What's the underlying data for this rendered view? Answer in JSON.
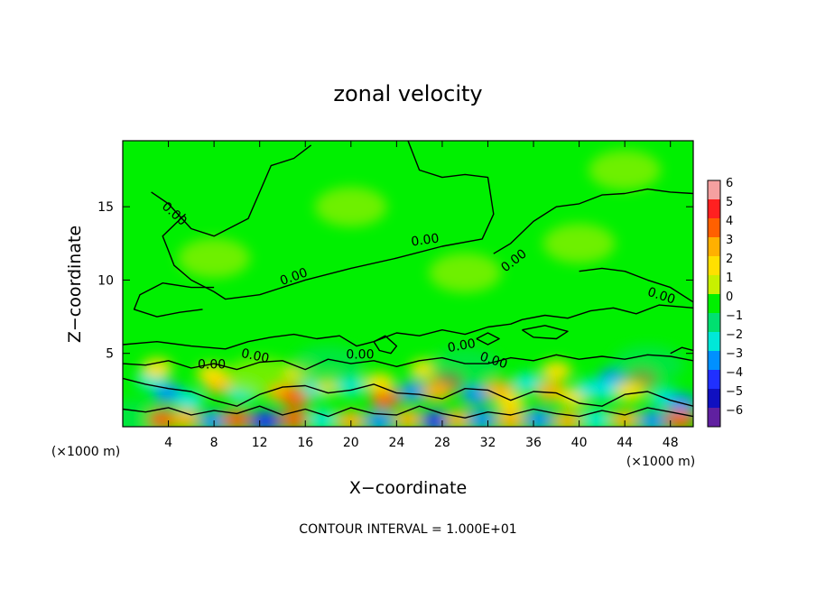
{
  "chart_data": {
    "type": "heatmap",
    "title": "zonal velocity",
    "xlabel": "X−coordinate",
    "ylabel": "Z−coordinate",
    "x_unit_left": "(×1000 m)",
    "x_unit_right": "(×1000 m)",
    "footer": "CONTOUR INTERVAL = 1.000E+01",
    "xlim": [
      0,
      50
    ],
    "ylim": [
      0,
      19.5
    ],
    "x_ticks": [
      4,
      8,
      12,
      16,
      20,
      24,
      28,
      32,
      36,
      40,
      44,
      48
    ],
    "x_tick_labels": [
      "4",
      "8",
      "12",
      "16",
      "20",
      "24",
      "28",
      "32",
      "36",
      "40",
      "44",
      "48"
    ],
    "y_ticks": [
      5,
      10,
      15
    ],
    "y_tick_labels": [
      "5",
      "10",
      "15"
    ],
    "colorbar": {
      "values": [
        6,
        5,
        4,
        3,
        2,
        1,
        0,
        -1,
        -2,
        -3,
        -4,
        -5,
        -6
      ],
      "labels": [
        "6",
        "5",
        "4",
        "3",
        "2",
        "1",
        "0",
        "−1",
        "−2",
        "−3",
        "−4",
        "−5",
        "−6"
      ],
      "colors": [
        "#f5a0a0",
        "#ff2020",
        "#ff6000",
        "#ffb000",
        "#ffe000",
        "#c8f000",
        "#00f000",
        "#00e070",
        "#00e8d8",
        "#0090ff",
        "#2030ff",
        "#1010c0",
        "#6020a0"
      ]
    },
    "background_color": "#00f000",
    "contour_labels": [
      {
        "text": "0.00",
        "x": 4.5,
        "z": 14.5,
        "angle": 42
      },
      {
        "text": "0.00",
        "x": 15.0,
        "z": 10.2,
        "angle": -20
      },
      {
        "text": "0.00",
        "x": 26.5,
        "z": 12.7,
        "angle": -8
      },
      {
        "text": "0.00",
        "x": 34.3,
        "z": 11.3,
        "angle": -38
      },
      {
        "text": "0.00",
        "x": 47.2,
        "z": 8.9,
        "angle": 18
      },
      {
        "text": "0.00",
        "x": 11.6,
        "z": 4.8,
        "angle": 12
      },
      {
        "text": "0.00",
        "x": 7.8,
        "z": 4.2,
        "angle": 0
      },
      {
        "text": "0.00",
        "x": 20.8,
        "z": 4.9,
        "angle": 0
      },
      {
        "text": "0.00",
        "x": 29.7,
        "z": 5.5,
        "angle": -10
      },
      {
        "text": "0.00",
        "x": 32.5,
        "z": 4.5,
        "angle": 18
      }
    ],
    "contours": [
      [
        [
          2.5,
          16.0
        ],
        [
          4.0,
          15.2
        ],
        [
          6.0,
          13.5
        ],
        [
          8.0,
          13.0
        ],
        [
          11.0,
          14.2
        ],
        [
          12.0,
          16.0
        ],
        [
          13.0,
          17.8
        ],
        [
          15.0,
          18.3
        ],
        [
          16.5,
          19.2
        ]
      ],
      [
        [
          25.0,
          19.5
        ],
        [
          26.0,
          17.5
        ],
        [
          28.0,
          17.0
        ],
        [
          30.0,
          17.2
        ],
        [
          32.0,
          17.0
        ],
        [
          32.5,
          14.5
        ],
        [
          31.5,
          12.8
        ],
        [
          28.0,
          12.3
        ],
        [
          24.0,
          11.5
        ],
        [
          20.0,
          10.8
        ],
        [
          16.0,
          10.0
        ],
        [
          12.0,
          9.0
        ],
        [
          9.0,
          8.7
        ],
        [
          8.0,
          9.2
        ],
        [
          6.0,
          10.0
        ],
        [
          4.5,
          11.0
        ],
        [
          4.0,
          12.0
        ],
        [
          3.5,
          13.0
        ],
        [
          5.5,
          14.5
        ]
      ],
      [
        [
          8.0,
          9.5
        ],
        [
          6.0,
          9.5
        ],
        [
          3.5,
          9.8
        ],
        [
          1.5,
          9.0
        ],
        [
          1.0,
          8.0
        ],
        [
          3.0,
          7.5
        ],
        [
          5.0,
          7.8
        ],
        [
          7.0,
          8.0
        ]
      ],
      [
        [
          0.0,
          5.6
        ],
        [
          3.0,
          5.8
        ],
        [
          6.0,
          5.5
        ],
        [
          9.0,
          5.3
        ],
        [
          11.0,
          5.8
        ],
        [
          13.0,
          6.1
        ],
        [
          15.0,
          6.3
        ],
        [
          17.0,
          6.0
        ],
        [
          19.0,
          6.2
        ],
        [
          20.5,
          5.5
        ],
        [
          22.0,
          5.8
        ],
        [
          24.0,
          6.4
        ],
        [
          26.0,
          6.2
        ],
        [
          28.0,
          6.6
        ],
        [
          30.0,
          6.3
        ],
        [
          32.0,
          6.8
        ],
        [
          34.0,
          7.0
        ],
        [
          35.0,
          7.3
        ],
        [
          37.0,
          7.6
        ],
        [
          39.0,
          7.4
        ],
        [
          41.0,
          7.9
        ],
        [
          43.0,
          8.1
        ],
        [
          45.0,
          7.7
        ],
        [
          47.0,
          8.3
        ],
        [
          50.0,
          8.1
        ]
      ],
      [
        [
          32.5,
          11.8
        ],
        [
          34.0,
          12.5
        ],
        [
          36.0,
          14.0
        ],
        [
          38.0,
          15.0
        ],
        [
          40.0,
          15.2
        ],
        [
          42.0,
          15.8
        ],
        [
          44.0,
          15.9
        ],
        [
          46.0,
          16.2
        ],
        [
          48.0,
          16.0
        ],
        [
          50.0,
          15.9
        ]
      ],
      [
        [
          40.0,
          10.6
        ],
        [
          42.0,
          10.8
        ],
        [
          44.0,
          10.6
        ],
        [
          46.0,
          10.0
        ],
        [
          48.0,
          9.5
        ],
        [
          50.0,
          8.5
        ]
      ],
      [
        [
          0.0,
          4.3
        ],
        [
          2.0,
          4.2
        ],
        [
          4.0,
          4.5
        ],
        [
          6.0,
          4.0
        ],
        [
          8.0,
          4.3
        ],
        [
          10.0,
          3.9
        ],
        [
          12.0,
          4.4
        ],
        [
          14.0,
          4.5
        ],
        [
          16.0,
          3.9
        ],
        [
          18.0,
          4.6
        ],
        [
          20.0,
          4.3
        ],
        [
          22.0,
          4.5
        ],
        [
          24.0,
          4.1
        ],
        [
          26.0,
          4.5
        ],
        [
          28.0,
          4.7
        ],
        [
          30.0,
          4.3
        ],
        [
          32.0,
          4.3
        ],
        [
          34.0,
          4.7
        ],
        [
          36.0,
          4.5
        ],
        [
          38.0,
          4.9
        ],
        [
          40.0,
          4.6
        ],
        [
          42.0,
          4.8
        ],
        [
          44.0,
          4.6
        ],
        [
          46.0,
          4.9
        ],
        [
          48.0,
          4.8
        ],
        [
          50.0,
          4.5
        ]
      ],
      [
        [
          0.0,
          3.3
        ],
        [
          2.0,
          2.9
        ],
        [
          4.0,
          2.6
        ],
        [
          6.0,
          2.4
        ],
        [
          8.0,
          1.8
        ],
        [
          10.0,
          1.4
        ],
        [
          12.0,
          2.2
        ],
        [
          14.0,
          2.7
        ],
        [
          16.0,
          2.8
        ],
        [
          18.0,
          2.3
        ],
        [
          20.0,
          2.5
        ],
        [
          22.0,
          2.9
        ],
        [
          24.0,
          2.3
        ],
        [
          26.0,
          2.2
        ],
        [
          28.0,
          1.9
        ],
        [
          30.0,
          2.6
        ],
        [
          32.0,
          2.5
        ],
        [
          34.0,
          1.8
        ],
        [
          36.0,
          2.4
        ],
        [
          38.0,
          2.3
        ],
        [
          40.0,
          1.6
        ],
        [
          42.0,
          1.4
        ],
        [
          44.0,
          2.2
        ],
        [
          46.0,
          2.4
        ],
        [
          48.0,
          1.8
        ],
        [
          50.0,
          1.4
        ]
      ],
      [
        [
          0.0,
          1.2
        ],
        [
          2.0,
          1.0
        ],
        [
          4.0,
          1.3
        ],
        [
          6.0,
          0.8
        ],
        [
          8.0,
          1.1
        ],
        [
          10.0,
          0.9
        ],
        [
          12.0,
          1.4
        ],
        [
          14.0,
          0.8
        ],
        [
          16.0,
          1.2
        ],
        [
          18.0,
          0.7
        ],
        [
          20.0,
          1.3
        ],
        [
          22.0,
          0.9
        ],
        [
          24.0,
          0.8
        ],
        [
          26.0,
          1.4
        ],
        [
          28.0,
          0.9
        ],
        [
          30.0,
          0.6
        ],
        [
          32.0,
          1.0
        ],
        [
          34.0,
          0.8
        ],
        [
          36.0,
          1.2
        ],
        [
          38.0,
          0.9
        ],
        [
          40.0,
          0.7
        ],
        [
          42.0,
          1.1
        ],
        [
          44.0,
          0.8
        ],
        [
          46.0,
          1.3
        ],
        [
          48.0,
          1.0
        ],
        [
          50.0,
          0.7
        ]
      ],
      [
        [
          22.0,
          5.8
        ],
        [
          23.0,
          6.2
        ],
        [
          24.0,
          5.5
        ],
        [
          23.5,
          5.0
        ],
        [
          22.5,
          5.2
        ],
        [
          22.0,
          5.8
        ]
      ],
      [
        [
          35.0,
          6.6
        ],
        [
          37.0,
          6.9
        ],
        [
          39.0,
          6.5
        ],
        [
          38.0,
          6.0
        ],
        [
          36.0,
          6.1
        ],
        [
          35.0,
          6.6
        ]
      ],
      [
        [
          31.0,
          6.0
        ],
        [
          32.0,
          6.4
        ],
        [
          33.0,
          6.0
        ],
        [
          32.0,
          5.6
        ],
        [
          31.0,
          6.0
        ]
      ],
      [
        [
          48.0,
          5.0
        ],
        [
          49.0,
          5.4
        ],
        [
          50.0,
          5.2
        ]
      ]
    ],
    "cells": [
      {
        "x": 4.0,
        "z": 2.3,
        "v": -3
      },
      {
        "x": 2.5,
        "z": 3.2,
        "v": -2
      },
      {
        "x": 5.8,
        "z": 1.8,
        "v": -2
      },
      {
        "x": 8.5,
        "z": 2.9,
        "v": 3
      },
      {
        "x": 7.8,
        "z": 3.6,
        "v": 2
      },
      {
        "x": 10.5,
        "z": 2.3,
        "v": -2
      },
      {
        "x": 12.0,
        "z": 3.4,
        "v": 1
      },
      {
        "x": 14.0,
        "z": 2.3,
        "v": 3
      },
      {
        "x": 15.2,
        "z": 2.0,
        "v": 4
      },
      {
        "x": 17.0,
        "z": 2.6,
        "v": -2
      },
      {
        "x": 18.2,
        "z": 2.9,
        "v": 2
      },
      {
        "x": 20.0,
        "z": 2.8,
        "v": -2
      },
      {
        "x": 23.0,
        "z": 1.9,
        "v": 4
      },
      {
        "x": 22.5,
        "z": 3.0,
        "v": 2
      },
      {
        "x": 25.5,
        "z": 2.4,
        "v": -3
      },
      {
        "x": 28.5,
        "z": 3.1,
        "v": 5
      },
      {
        "x": 27.5,
        "z": 2.4,
        "v": 3
      },
      {
        "x": 31.0,
        "z": 2.2,
        "v": -3
      },
      {
        "x": 33.0,
        "z": 2.5,
        "v": 3
      },
      {
        "x": 34.0,
        "z": 1.6,
        "v": 2
      },
      {
        "x": 35.5,
        "z": 3.0,
        "v": -2
      },
      {
        "x": 37.5,
        "z": 2.4,
        "v": 3
      },
      {
        "x": 39.5,
        "z": 2.0,
        "v": 2
      },
      {
        "x": 41.0,
        "z": 2.6,
        "v": -2
      },
      {
        "x": 43.0,
        "z": 3.3,
        "v": -3
      },
      {
        "x": 42.5,
        "z": 2.5,
        "v": -2
      },
      {
        "x": 45.5,
        "z": 3.3,
        "v": 4
      },
      {
        "x": 44.5,
        "z": 2.4,
        "v": 2
      },
      {
        "x": 47.5,
        "z": 2.0,
        "v": -2
      },
      {
        "x": 49.0,
        "z": 1.6,
        "v": -3
      },
      {
        "x": 1.0,
        "z": 0.5,
        "v": -1
      },
      {
        "x": 3.5,
        "z": 0.5,
        "v": 4
      },
      {
        "x": 5.5,
        "z": 0.5,
        "v": 3
      },
      {
        "x": 8.0,
        "z": 0.4,
        "v": -3
      },
      {
        "x": 10.0,
        "z": 0.5,
        "v": 4
      },
      {
        "x": 12.5,
        "z": 0.4,
        "v": -4
      },
      {
        "x": 15.0,
        "z": 0.5,
        "v": 4
      },
      {
        "x": 17.5,
        "z": 0.5,
        "v": -2
      },
      {
        "x": 20.0,
        "z": 0.4,
        "v": 3
      },
      {
        "x": 22.5,
        "z": 0.4,
        "v": -3
      },
      {
        "x": 25.0,
        "z": 0.5,
        "v": 3
      },
      {
        "x": 27.5,
        "z": 0.4,
        "v": -4
      },
      {
        "x": 29.5,
        "z": 0.5,
        "v": 3
      },
      {
        "x": 31.5,
        "z": 0.5,
        "v": -3
      },
      {
        "x": 34.0,
        "z": 0.4,
        "v": 3
      },
      {
        "x": 36.5,
        "z": 0.5,
        "v": -3
      },
      {
        "x": 39.0,
        "z": 0.4,
        "v": 3
      },
      {
        "x": 41.5,
        "z": 0.5,
        "v": -2
      },
      {
        "x": 44.0,
        "z": 0.5,
        "v": 3
      },
      {
        "x": 46.5,
        "z": 0.4,
        "v": -3
      },
      {
        "x": 48.8,
        "z": 0.5,
        "v": 4
      },
      {
        "x": 3.0,
        "z": 4.0,
        "v": 2
      },
      {
        "x": 15.5,
        "z": 3.7,
        "v": 2
      },
      {
        "x": 26.5,
        "z": 3.9,
        "v": 2
      },
      {
        "x": 38.0,
        "z": 3.8,
        "v": 2
      },
      {
        "x": 18.0,
        "z": 4.2,
        "v": -1
      },
      {
        "x": 30.0,
        "z": 4.0,
        "v": -1
      },
      {
        "x": 46.0,
        "z": 4.2,
        "v": -1
      },
      {
        "x": 20.0,
        "z": 15.0,
        "v": 1
      },
      {
        "x": 30.0,
        "z": 10.5,
        "v": 1
      },
      {
        "x": 40.0,
        "z": 12.5,
        "v": 1
      },
      {
        "x": 8.0,
        "z": 11.5,
        "v": 1
      },
      {
        "x": 44.0,
        "z": 17.5,
        "v": 1
      }
    ]
  }
}
